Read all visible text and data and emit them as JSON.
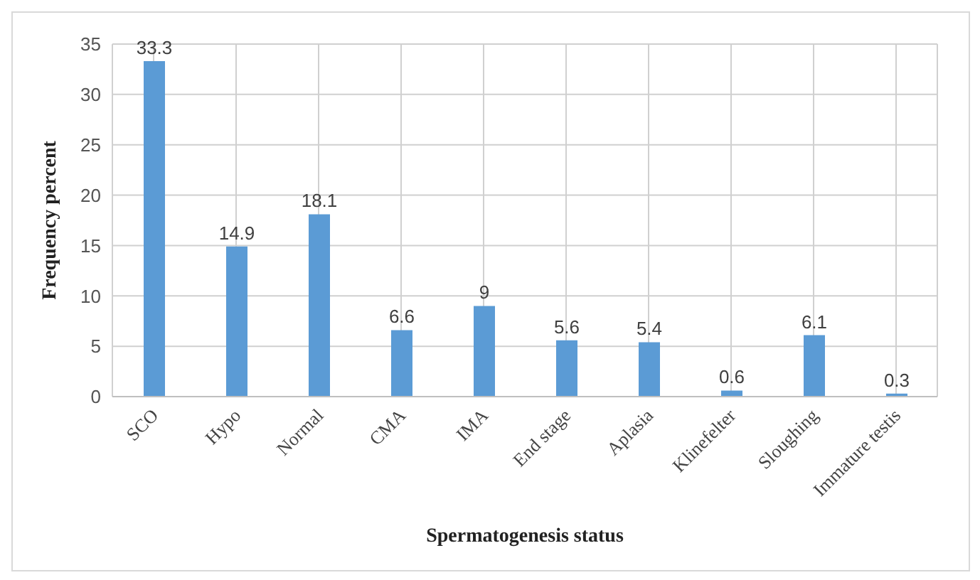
{
  "chart_data": {
    "type": "bar",
    "xlabel": "Spermatogenesis status",
    "ylabel": "Frequency percent",
    "categories": [
      "SCO",
      "Hypo",
      "Normal",
      "CMA",
      "IMA",
      "End stage",
      "Aplasia",
      "Klinefelter",
      "Sloughing",
      "Immature testis"
    ],
    "values": [
      33.3,
      14.9,
      18.1,
      6.6,
      9,
      5.6,
      5.4,
      0.6,
      6.1,
      0.3
    ],
    "color": "#5b9bd5",
    "ylim": [
      0,
      35
    ],
    "yticks": [
      0,
      5,
      10,
      15,
      20,
      25,
      30,
      35
    ],
    "grid": true,
    "data_labels": true
  }
}
